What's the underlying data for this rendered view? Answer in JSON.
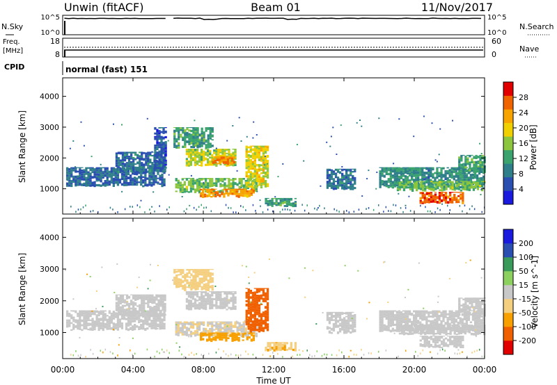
{
  "header": {
    "station": "Unwin (fitACF)",
    "beam": "Beam 01",
    "date": "11/Nov/2017"
  },
  "strips": {
    "nsky": {
      "left_label": "N.Sky",
      "ticks": [
        "10^5",
        "10^0"
      ],
      "right_label": "N.Search",
      "right_ticks": [
        "10^5",
        "10^0"
      ]
    },
    "freq": {
      "left_label_1": "Freq.",
      "left_label_2": "[MHz]",
      "ticks": [
        "18",
        "8"
      ],
      "right_ticks": [
        "60",
        "0"
      ],
      "right_label": "Nave"
    },
    "cpid": {
      "left_label": "CPID",
      "value": "normal (fast) 151"
    }
  },
  "chart_data": [
    {
      "type": "heatmap",
      "name": "power",
      "x_label": "Time UT",
      "y_label": "Slant Range [km]",
      "x_ticks": [
        "00:00",
        "04:00",
        "08:00",
        "12:00",
        "16:00",
        "20:00",
        "00:00"
      ],
      "x_range_hours": [
        0,
        24
      ],
      "y_ticks": [
        1000,
        2000,
        3000,
        4000
      ],
      "y_range": [
        180,
        4600
      ],
      "colorbar_label": "Power [dB]",
      "colorbar_ticks": [
        "28",
        "24",
        "20",
        "16",
        "12",
        "8",
        "4"
      ],
      "colorbar_range": [
        0,
        32
      ],
      "colors": [
        "#1a1adf",
        "#2a4fb0",
        "#2f7f8a",
        "#3aa36e",
        "#8cc63f",
        "#f0d000",
        "#f7a400",
        "#f06400",
        "#e00000"
      ],
      "regions": [
        {
          "t0": 0.2,
          "t1": 5.8,
          "r0": 1050,
          "r1": 1700,
          "p": 7
        },
        {
          "t0": 3.0,
          "t1": 5.8,
          "r0": 1500,
          "r1": 2200,
          "p": 8
        },
        {
          "t0": 5.2,
          "t1": 5.9,
          "r0": 1600,
          "r1": 3000,
          "p": 6
        },
        {
          "t0": 6.3,
          "t1": 8.5,
          "r0": 2300,
          "r1": 3000,
          "p": 12
        },
        {
          "t0": 7.0,
          "t1": 9.8,
          "r0": 1700,
          "r1": 2300,
          "p": 17
        },
        {
          "t0": 8.5,
          "t1": 9.7,
          "r0": 1750,
          "r1": 2050,
          "p": 25
        },
        {
          "t0": 6.4,
          "t1": 11.0,
          "r0": 850,
          "r1": 1350,
          "p": 15
        },
        {
          "t0": 7.8,
          "t1": 10.8,
          "r0": 700,
          "r1": 1000,
          "p": 24
        },
        {
          "t0": 10.4,
          "t1": 11.6,
          "r0": 1000,
          "r1": 2400,
          "p": 19
        },
        {
          "t0": 11.5,
          "t1": 13.2,
          "r0": 400,
          "r1": 700,
          "p": 12
        },
        {
          "t0": 15.0,
          "t1": 16.6,
          "r0": 950,
          "r1": 1650,
          "p": 8
        },
        {
          "t0": 18.0,
          "t1": 24.0,
          "r0": 1000,
          "r1": 1700,
          "p": 10
        },
        {
          "t0": 19.0,
          "t1": 24.0,
          "r0": 900,
          "r1": 1250,
          "p": 15
        },
        {
          "t0": 20.3,
          "t1": 22.8,
          "r0": 500,
          "r1": 900,
          "p": 27
        },
        {
          "t0": 22.5,
          "t1": 24.0,
          "r0": 1500,
          "r1": 2100,
          "p": 12
        }
      ]
    },
    {
      "type": "heatmap",
      "name": "velocity",
      "x_label": "Time UT",
      "y_label": "Slant Range [km]",
      "x_ticks": [
        "00:00",
        "04:00",
        "08:00",
        "12:00",
        "16:00",
        "20:00",
        "00:00"
      ],
      "x_range_hours": [
        0,
        24
      ],
      "y_ticks": [
        1000,
        2000,
        3000,
        4000
      ],
      "y_range": [
        180,
        4600
      ],
      "colorbar_label": "Velocity [m s^-1]",
      "colorbar_ticks": [
        "200",
        "100",
        "50",
        "15",
        "-15",
        "-50",
        "-100",
        "-200"
      ],
      "colorbar_range": [
        -250,
        250
      ],
      "colors": [
        "#e00000",
        "#f06000",
        "#f7a000",
        "#f5cf80",
        "#c8c8c8",
        "#8cd060",
        "#3a9a5a",
        "#2a4fb0",
        "#1a1adf"
      ],
      "regions": [
        {
          "t0": 0.2,
          "t1": 5.8,
          "r0": 1050,
          "r1": 1700,
          "v": 0
        },
        {
          "t0": 3.0,
          "t1": 5.8,
          "r0": 1500,
          "r1": 2200,
          "v": 0
        },
        {
          "t0": 6.3,
          "t1": 8.5,
          "r0": 2300,
          "r1": 3000,
          "v": -30
        },
        {
          "t0": 7.0,
          "t1": 9.8,
          "r0": 1700,
          "r1": 2300,
          "v": 0
        },
        {
          "t0": 6.4,
          "t1": 11.0,
          "r0": 850,
          "r1": 1350,
          "v": -10
        },
        {
          "t0": 7.8,
          "t1": 10.8,
          "r0": 700,
          "r1": 1000,
          "v": -80
        },
        {
          "t0": 10.4,
          "t1": 11.6,
          "r0": 1000,
          "r1": 2400,
          "v": -150
        },
        {
          "t0": 11.5,
          "t1": 13.2,
          "r0": 400,
          "r1": 700,
          "v": -40
        },
        {
          "t0": 15.0,
          "t1": 16.6,
          "r0": 950,
          "r1": 1650,
          "v": 0
        },
        {
          "t0": 18.0,
          "t1": 24.0,
          "r0": 1000,
          "r1": 1700,
          "v": 0
        },
        {
          "t0": 19.0,
          "t1": 24.0,
          "r0": 900,
          "r1": 1250,
          "v": 0
        },
        {
          "t0": 20.3,
          "t1": 22.8,
          "r0": 500,
          "r1": 900,
          "v": 0
        },
        {
          "t0": 22.5,
          "t1": 24.0,
          "r0": 1500,
          "r1": 2100,
          "v": 0
        }
      ]
    }
  ]
}
